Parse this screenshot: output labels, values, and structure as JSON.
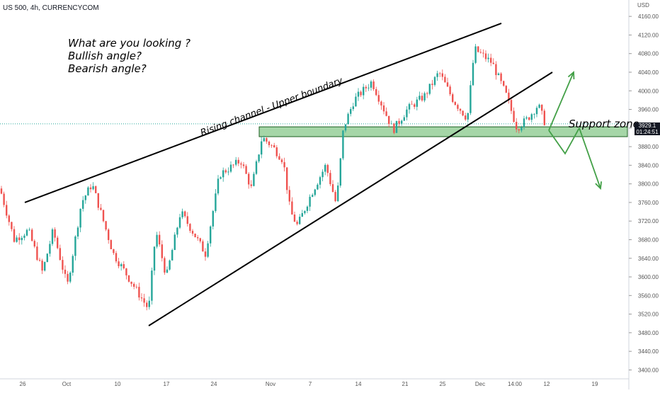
{
  "header": {
    "symbol_title": "US 500, 4h, CURRENCYCOM",
    "currency": "USD"
  },
  "price_label": {
    "price": "3929.1",
    "countdown": "01:24:51"
  },
  "annotations": {
    "question_lines": [
      "What are you looking ?",
      "Bullish angle?",
      "Bearish angle?"
    ],
    "channel_label": "Rising channel - Upper boundary",
    "support_label": "Support zone"
  },
  "colors": {
    "up": "#26a69a",
    "down": "#ef5350",
    "zone": "#a5d6a7",
    "zone_border": "#1b5e20",
    "arrow": "#43a047",
    "line": "#000000"
  },
  "chart_data": {
    "type": "candlestick",
    "title": "US 500, 4h, CURRENCYCOM",
    "ylabel": "USD",
    "ylim": [
      3390,
      4180
    ],
    "y_ticks": [
      4160,
      4120,
      4080,
      4040,
      4000,
      3960,
      3920,
      3880,
      3840,
      3800,
      3760,
      3720,
      3680,
      3640,
      3600,
      3560,
      3520,
      3480,
      3440,
      3400
    ],
    "x_ticks": [
      "26",
      "Oct",
      "10",
      "17",
      "24",
      "Nov",
      "7",
      "14",
      "21",
      "25",
      "Dec",
      "14:00",
      "12",
      "19"
    ],
    "close_path": [
      {
        "t": 0,
        "v": 3790
      },
      {
        "t": 20,
        "v": 3680
      },
      {
        "t": 40,
        "v": 3700
      },
      {
        "t": 60,
        "v": 3610
      },
      {
        "t": 75,
        "v": 3700
      },
      {
        "t": 95,
        "v": 3580
      },
      {
        "t": 115,
        "v": 3760
      },
      {
        "t": 130,
        "v": 3800
      },
      {
        "t": 160,
        "v": 3650
      },
      {
        "t": 185,
        "v": 3590
      },
      {
        "t": 210,
        "v": 3530
      },
      {
        "t": 220,
        "v": 3700
      },
      {
        "t": 235,
        "v": 3600
      },
      {
        "t": 255,
        "v": 3740
      },
      {
        "t": 275,
        "v": 3690
      },
      {
        "t": 290,
        "v": 3650
      },
      {
        "t": 310,
        "v": 3820
      },
      {
        "t": 340,
        "v": 3850
      },
      {
        "t": 355,
        "v": 3790
      },
      {
        "t": 370,
        "v": 3900
      },
      {
        "t": 385,
        "v": 3880
      },
      {
        "t": 400,
        "v": 3850
      },
      {
        "t": 410,
        "v": 3740
      },
      {
        "t": 420,
        "v": 3710
      },
      {
        "t": 440,
        "v": 3780
      },
      {
        "t": 460,
        "v": 3840
      },
      {
        "t": 475,
        "v": 3755
      },
      {
        "t": 485,
        "v": 3920
      },
      {
        "t": 500,
        "v": 3980
      },
      {
        "t": 525,
        "v": 4020
      },
      {
        "t": 545,
        "v": 3950
      },
      {
        "t": 555,
        "v": 3915
      },
      {
        "t": 575,
        "v": 3960
      },
      {
        "t": 600,
        "v": 3990
      },
      {
        "t": 620,
        "v": 4040
      },
      {
        "t": 640,
        "v": 3980
      },
      {
        "t": 660,
        "v": 3940
      },
      {
        "t": 670,
        "v": 4090
      },
      {
        "t": 695,
        "v": 4060
      },
      {
        "t": 715,
        "v": 3990
      },
      {
        "t": 730,
        "v": 3920
      },
      {
        "t": 745,
        "v": 3940
      },
      {
        "t": 760,
        "v": 3970
      },
      {
        "t": 770,
        "v": 3929
      }
    ],
    "support_zone": {
      "y_low": 3906,
      "y_high": 3918
    },
    "channel_upper": [
      {
        "t": 35,
        "v": 3760
      },
      {
        "t": 708,
        "v": 4145
      }
    ],
    "channel_lower": [
      {
        "t": 210,
        "v": 3495
      },
      {
        "t": 780,
        "v": 4040
      }
    ],
    "scenario_bullish": [
      {
        "t": 775,
        "v": 3915
      },
      {
        "t": 798,
        "v": 3865
      },
      {
        "t": 818,
        "v": 3920
      },
      {
        "t": 810,
        "v": 4040
      }
    ],
    "scenario_bearish": [
      {
        "t": 818,
        "v": 3920
      },
      {
        "t": 848,
        "v": 3790
      }
    ]
  }
}
